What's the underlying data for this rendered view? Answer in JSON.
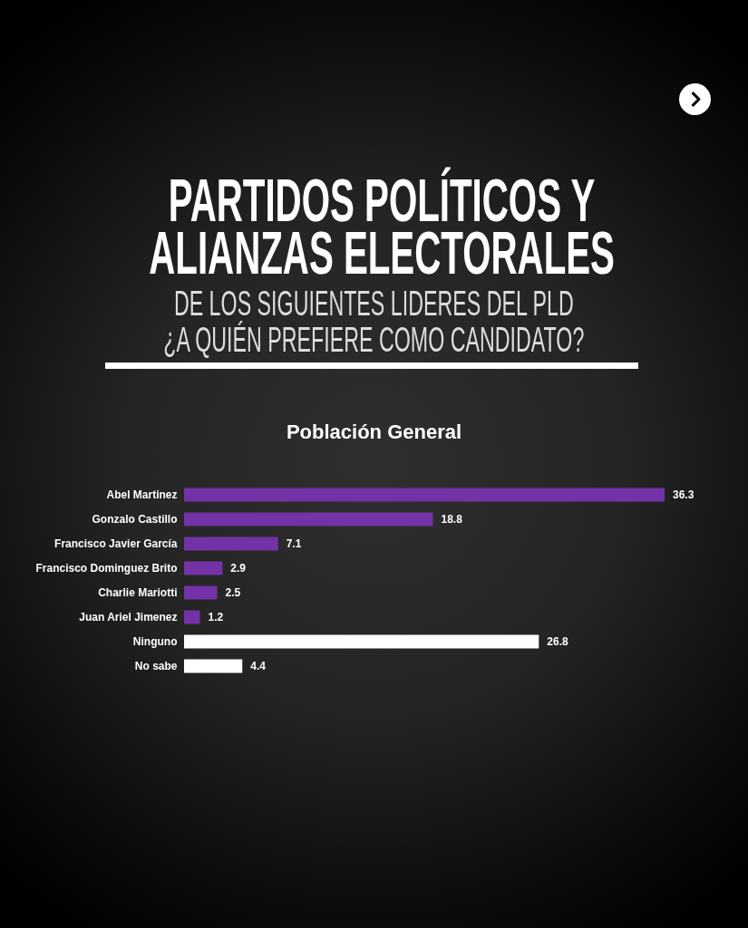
{
  "chart_data": {
    "type": "bar",
    "orientation": "horizontal",
    "title": "PARTIDOS POLÍTICOS Y ALIANZAS ELECTORALES",
    "subtitle": "DE LOS SIGUIENTES LIDERES DEL PLD ¿A QUIÉN PREFIERE COMO CANDIDATO?",
    "annotations": [
      "Población General"
    ],
    "categories": [
      "Abel Martinez",
      "Gonzalo Castillo",
      "Francisco Javier García",
      "Francisco Dominguez Brito",
      "Charlie Mariotti",
      "Juan Ariel Jimenez",
      "Ninguno",
      "No sabe"
    ],
    "values": [
      36.3,
      18.8,
      7.1,
      2.9,
      2.5,
      1.2,
      26.8,
      4.4
    ],
    "colors": [
      "#7332a6",
      "#7332a6",
      "#7332a6",
      "#7332a6",
      "#7332a6",
      "#7332a6",
      "#ffffff",
      "#ffffff"
    ],
    "data_labels": true,
    "tick_labels": "y"
  }
}
